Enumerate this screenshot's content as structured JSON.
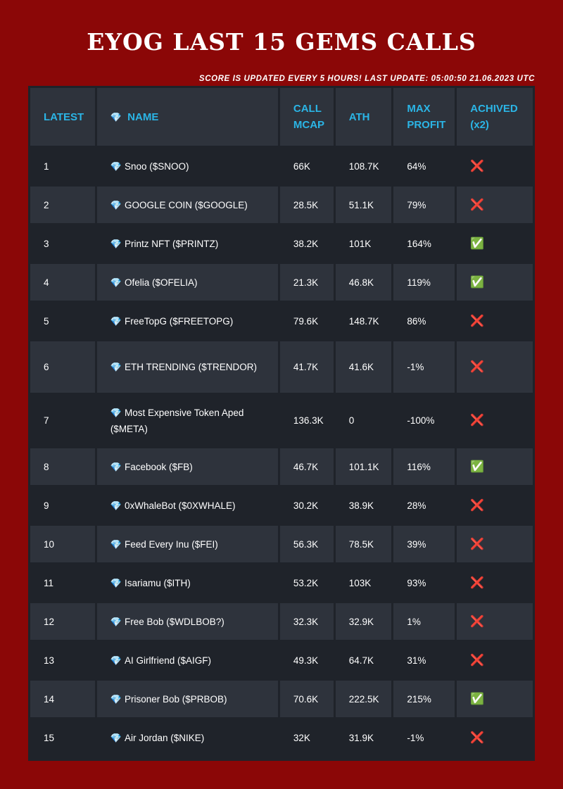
{
  "title": "EYOG LAST 15 GEMS CALLS",
  "update_note": "SCORE IS UPDATED EVERY 5 HOURS! LAST UPDATE: 05:00:50 21.06.2023 UTC",
  "colors": {
    "background": "#8b0707",
    "table_dark": "#1f232a",
    "table_light": "#2e333c",
    "header_text": "#2bb5e6",
    "cross": "#e03030",
    "check": "#7ac143"
  },
  "icons": {
    "gem": "gem-icon",
    "achieved": "check-icon",
    "not_achieved": "cross-icon"
  },
  "table": {
    "headers": {
      "latest": "LATEST",
      "name_icon": "💎",
      "name": "NAME",
      "call_mcap_1": "CALL",
      "call_mcap_2": "MCAP",
      "ath": "ATH",
      "max_profit_1": "MAX",
      "max_profit_2": "PROFIT",
      "achived_1": "ACHIVED",
      "achived_2": "(x2)"
    },
    "rows": [
      {
        "latest": "1",
        "gem": "💎",
        "name": "Snoo ($SNOO)",
        "mcap": "66K",
        "ath": "108.7K",
        "profit": "64%",
        "achived": "❌"
      },
      {
        "latest": "2",
        "gem": "💎",
        "name": "GOOGLE COIN ($GOOGLE)",
        "mcap": "28.5K",
        "ath": "51.1K",
        "profit": "79%",
        "achived": "❌"
      },
      {
        "latest": "3",
        "gem": "💎",
        "name": "Printz NFT ($PRINTZ)",
        "mcap": "38.2K",
        "ath": "101K",
        "profit": "164%",
        "achived": "✅"
      },
      {
        "latest": "4",
        "gem": "💎",
        "name": "Ofelia ($OFELIA)",
        "mcap": "21.3K",
        "ath": "46.8K",
        "profit": "119%",
        "achived": "✅"
      },
      {
        "latest": "5",
        "gem": "💎",
        "name": "FreeTopG ($FREETOPG)",
        "mcap": "79.6K",
        "ath": "148.7K",
        "profit": "86%",
        "achived": "❌"
      },
      {
        "latest": "6",
        "gem": "💎",
        "name": "ETH TRENDING ($TRENDOR)",
        "mcap": "41.7K",
        "ath": "41.6K",
        "profit": "-1%",
        "achived": "❌"
      },
      {
        "latest": "7",
        "gem": "💎",
        "name": "Most Expensive Token Aped ($META)",
        "mcap": "136.3K",
        "ath": "0",
        "profit": "-100%",
        "achived": "❌"
      },
      {
        "latest": "8",
        "gem": "💎",
        "name": "Facebook ($FB)",
        "mcap": "46.7K",
        "ath": "101.1K",
        "profit": "116%",
        "achived": "✅"
      },
      {
        "latest": "9",
        "gem": "💎",
        "name": "0xWhaleBot ($0XWHALE)",
        "mcap": "30.2K",
        "ath": "38.9K",
        "profit": "28%",
        "achived": "❌"
      },
      {
        "latest": "10",
        "gem": "💎",
        "name": "Feed Every Inu ($FEI)",
        "mcap": "56.3K",
        "ath": "78.5K",
        "profit": "39%",
        "achived": "❌"
      },
      {
        "latest": "11",
        "gem": "💎",
        "name": "Isariamu ($ITH)",
        "mcap": "53.2K",
        "ath": "103K",
        "profit": "93%",
        "achived": "❌"
      },
      {
        "latest": "12",
        "gem": "💎",
        "name": "Free Bob ($WDLBOB?)",
        "mcap": "32.3K",
        "ath": "32.9K",
        "profit": "1%",
        "achived": "❌"
      },
      {
        "latest": "13",
        "gem": "💎",
        "name": "AI Girlfriend ($AIGF)",
        "mcap": "49.3K",
        "ath": "64.7K",
        "profit": "31%",
        "achived": "❌"
      },
      {
        "latest": "14",
        "gem": "💎",
        "name": "Prisoner Bob ($PRBOB)",
        "mcap": "70.6K",
        "ath": "222.5K",
        "profit": "215%",
        "achived": "✅"
      },
      {
        "latest": "15",
        "gem": "💎",
        "name": "Air Jordan ($NIKE)",
        "mcap": "32K",
        "ath": "31.9K",
        "profit": "-1%",
        "achived": "❌"
      }
    ]
  }
}
